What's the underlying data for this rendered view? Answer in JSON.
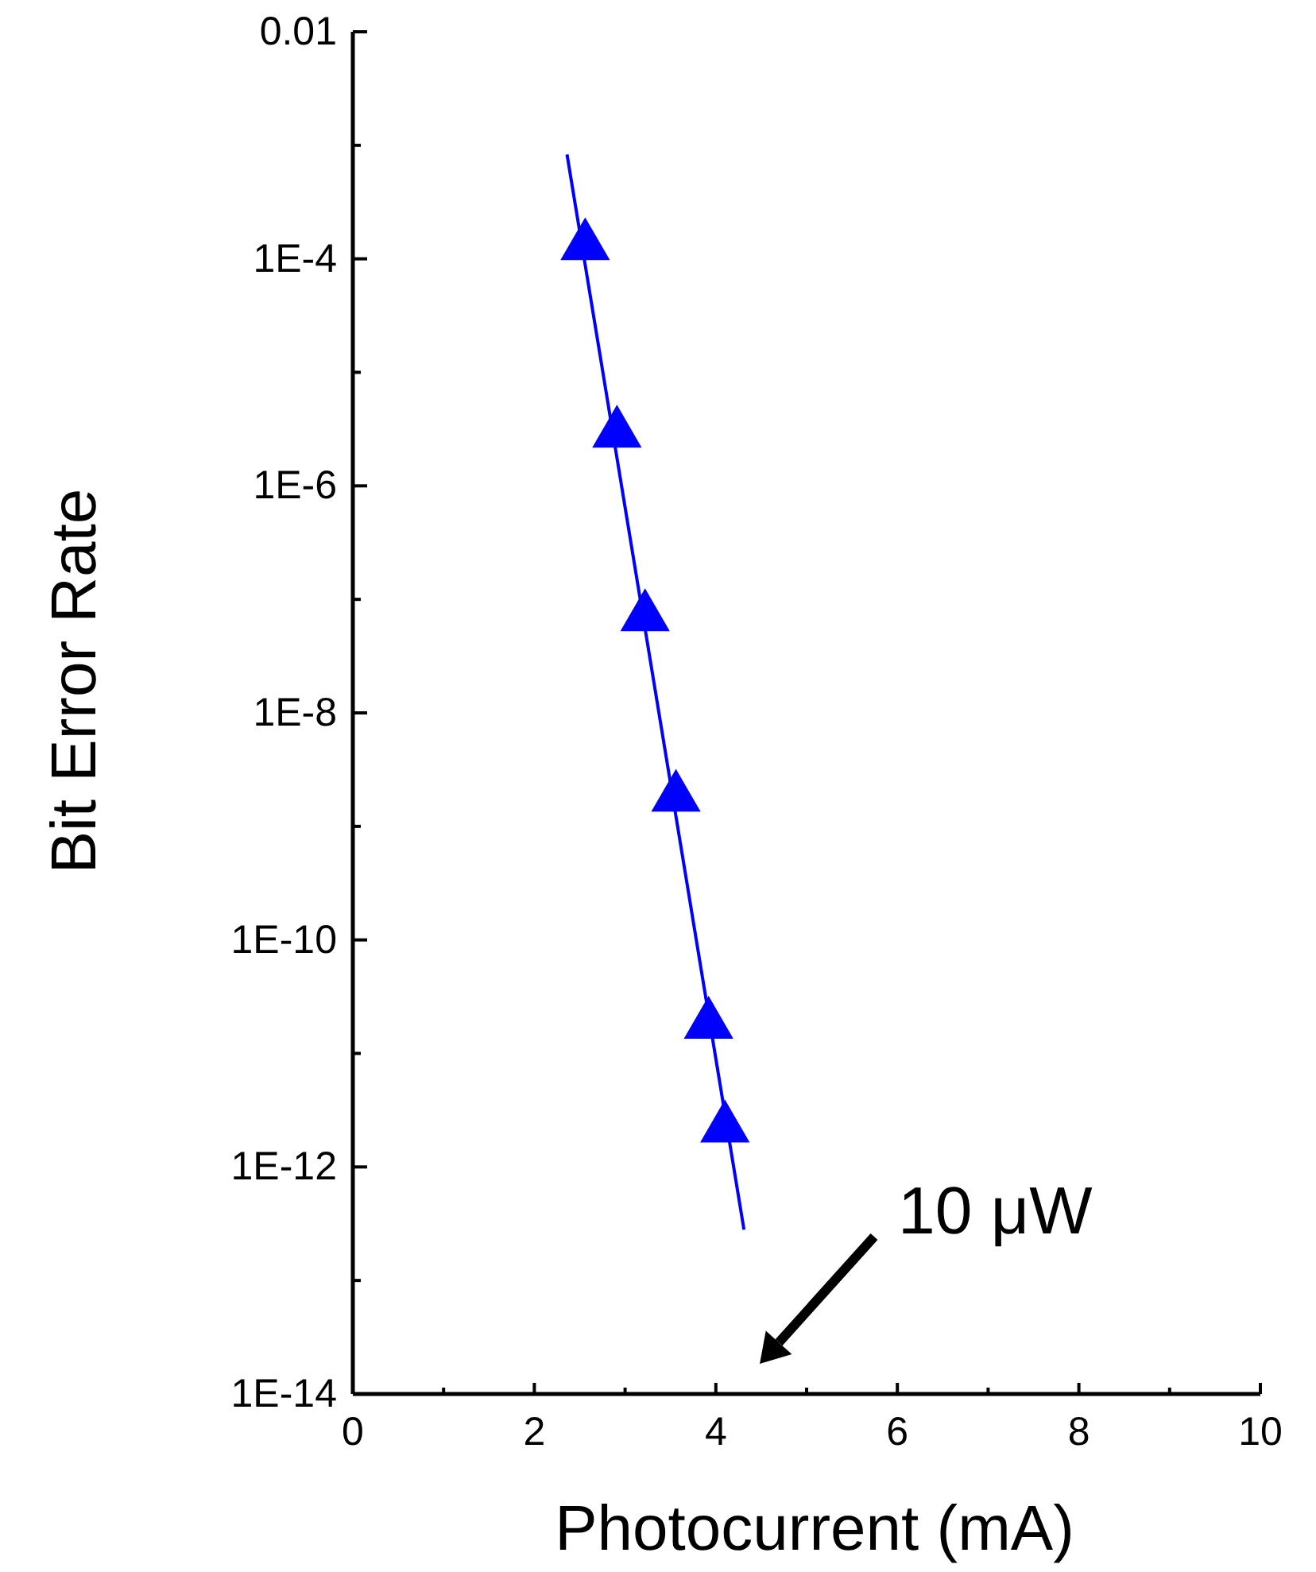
{
  "chart_data": {
    "type": "scatter",
    "xlabel": "Photocurrent (mA)",
    "ylabel": "Bit Error Rate",
    "log": "y",
    "grid": false,
    "xlim": [
      0,
      10
    ],
    "ylim": [
      1e-14,
      0.01
    ],
    "xticks": [
      0,
      {
        "value": 1,
        "label": null
      },
      2,
      {
        "value": 3,
        "label": null
      },
      4,
      {
        "value": 5,
        "label": null
      },
      6,
      {
        "value": 7,
        "label": null
      },
      8,
      {
        "value": 9,
        "label": null
      },
      10
    ],
    "yticks": [
      {
        "value": 1e-14,
        "label": "1E-14"
      },
      {
        "value": 1e-13,
        "label": null
      },
      {
        "value": 1e-12,
        "label": "1E-12"
      },
      {
        "value": 1e-11,
        "label": null
      },
      {
        "value": 1e-10,
        "label": "1E-10"
      },
      {
        "value": 1e-09,
        "label": null
      },
      {
        "value": 1e-08,
        "label": "1E-8"
      },
      {
        "value": 1e-07,
        "label": null
      },
      {
        "value": 1e-06,
        "label": "1E-6"
      },
      {
        "value": 1e-05,
        "label": null
      },
      {
        "value": 0.0001,
        "label": "1E-4"
      },
      {
        "value": 0.001,
        "label": null
      },
      {
        "value": 0.01,
        "label": "0.01"
      }
    ],
    "series": [
      {
        "marker": "triangle",
        "color": "#0000ff",
        "x": [
          2.56,
          2.91,
          3.22,
          3.56,
          3.92,
          4.1
        ],
        "values": [
          0.00013,
          2.9e-06,
          7e-08,
          1.8e-09,
          1.8e-11,
          2.2e-12
        ]
      },
      {
        "type": "line",
        "marker": "none",
        "line_style": "solid",
        "color": "#0000ff",
        "x": [
          2.36,
          4.31
        ],
        "values": [
          0.00083,
          2.8e-13
        ]
      }
    ],
    "annotations": [
      "10 μW"
    ]
  }
}
